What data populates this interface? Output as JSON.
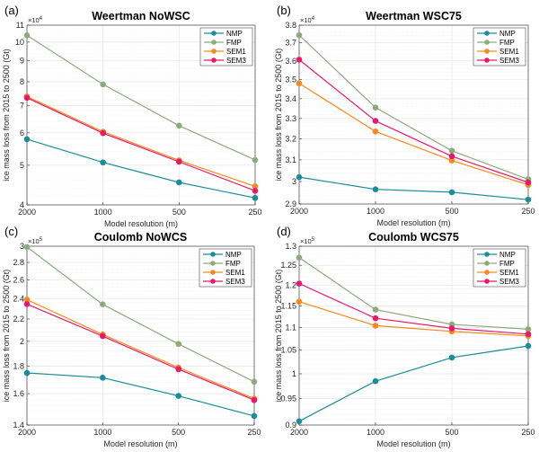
{
  "chart_data": [
    {
      "type": "line",
      "panel_label": "(a)",
      "title": "Weertman NoWSC",
      "xlabel": "Model resolution (m)",
      "ylabel": "ice mass loss from 2015 to 2500 (Gt)",
      "y_exponent_label": "×10",
      "y_exponent": "4",
      "yscale": "log",
      "ylim": [
        4,
        11
      ],
      "yticks": [
        4,
        5,
        6,
        7,
        8,
        9,
        10,
        11
      ],
      "ytick_labels": [
        "4",
        "5",
        "6",
        "7",
        "8",
        "9",
        "10",
        "11"
      ],
      "categories": [
        "2000",
        "1000",
        "500",
        "250"
      ],
      "grid": true,
      "legend_position": "top-right",
      "series": [
        {
          "name": "NMP",
          "values": [
            5.79,
            5.08,
            4.54,
            4.16
          ]
        },
        {
          "name": "FMP",
          "values": [
            10.39,
            7.88,
            6.25,
            5.15
          ]
        },
        {
          "name": "SEM1",
          "values": [
            7.36,
            6.04,
            5.14,
            4.44
          ]
        },
        {
          "name": "SEM3",
          "values": [
            7.31,
            5.99,
            5.1,
            4.33
          ]
        }
      ]
    },
    {
      "type": "line",
      "panel_label": "(b)",
      "title": "Weertman WSC75",
      "xlabel": "Model resolution (m)",
      "ylabel": "ice mass loss from 2015 to 2500 (Gt)",
      "y_exponent_label": "×10",
      "y_exponent": "4",
      "yscale": "log",
      "ylim": [
        2.9,
        3.8
      ],
      "yticks": [
        2.9,
        3.0,
        3.1,
        3.2,
        3.3,
        3.4,
        3.5,
        3.6,
        3.7,
        3.8
      ],
      "ytick_labels": [
        "2.9",
        "3",
        "3.1",
        "3.2",
        "3.3",
        "3.4",
        "3.5",
        "3.6",
        "3.7",
        "3.8"
      ],
      "categories": [
        "2000",
        "1000",
        "500",
        "250"
      ],
      "grid": true,
      "legend_position": "top-right",
      "series": [
        {
          "name": "NMP",
          "values": [
            3.02,
            2.965,
            2.952,
            2.919
          ]
        },
        {
          "name": "FMP",
          "values": [
            3.743,
            3.355,
            3.143,
            3.01
          ]
        },
        {
          "name": "SEM1",
          "values": [
            3.48,
            3.236,
            3.097,
            2.985
          ]
        },
        {
          "name": "SEM3",
          "values": [
            3.607,
            3.288,
            3.117,
            2.996
          ]
        }
      ]
    },
    {
      "type": "line",
      "panel_label": "(c)",
      "title": "Coulomb NoWCS",
      "xlabel": "Model resolution (m)",
      "ylabel": "ice mass loss from 2015 to 2500 (Gt)",
      "y_exponent_label": "×10",
      "y_exponent": "5",
      "yscale": "log",
      "ylim": [
        1.4,
        3.0
      ],
      "yticks": [
        1.4,
        1.6,
        1.8,
        2.0,
        2.2,
        2.4,
        2.6,
        2.8,
        3.0
      ],
      "ytick_labels": [
        "1.4",
        "1.6",
        "1.8",
        "2",
        "2.2",
        "2.4",
        "2.6",
        "2.8",
        "3"
      ],
      "categories": [
        "2000",
        "1000",
        "500",
        "250"
      ],
      "grid": true,
      "legend_position": "top-right",
      "series": [
        {
          "name": "NMP",
          "values": [
            1.748,
            1.713,
            1.585,
            1.455
          ]
        },
        {
          "name": "FMP",
          "values": [
            2.99,
            2.342,
            1.978,
            1.684
          ]
        },
        {
          "name": "SEM1",
          "values": [
            2.389,
            2.06,
            1.789,
            1.567
          ]
        },
        {
          "name": "SEM3",
          "values": [
            2.344,
            2.045,
            1.776,
            1.557
          ]
        }
      ]
    },
    {
      "type": "line",
      "panel_label": "(d)",
      "title": "Coulomb WCS75",
      "xlabel": "Model resolution (m)",
      "ylabel": "ice mass loss from 2015 to 2500 (Gt)",
      "y_exponent_label": "×10",
      "y_exponent": "5",
      "yscale": "log",
      "ylim": [
        0.9,
        1.3
      ],
      "yticks": [
        0.9,
        0.95,
        1.0,
        1.05,
        1.1,
        1.15,
        1.2,
        1.25,
        1.3
      ],
      "ytick_labels": [
        "0.9",
        "0.95",
        "1",
        "1.05",
        "1.1",
        "1.15",
        "1.2",
        "1.25",
        "1.3"
      ],
      "categories": [
        "2000",
        "1000",
        "500",
        "250"
      ],
      "grid": true,
      "legend_position": "top-right",
      "series": [
        {
          "name": "NMP",
          "values": [
            0.907,
            0.985,
            1.034,
            1.059
          ]
        },
        {
          "name": "FMP",
          "values": [
            1.27,
            1.141,
            1.107,
            1.096
          ]
        },
        {
          "name": "SEM1",
          "values": [
            1.16,
            1.104,
            1.091,
            1.081
          ]
        },
        {
          "name": "SEM3",
          "values": [
            1.204,
            1.121,
            1.098,
            1.085
          ]
        }
      ]
    }
  ],
  "series_colors": {
    "NMP": "#1a8c9a",
    "FMP": "#8fa97c",
    "SEM1": "#f5891d",
    "SEM3": "#e8196b"
  },
  "axis_color": "#262626",
  "grid_color": "#e6e6e6"
}
